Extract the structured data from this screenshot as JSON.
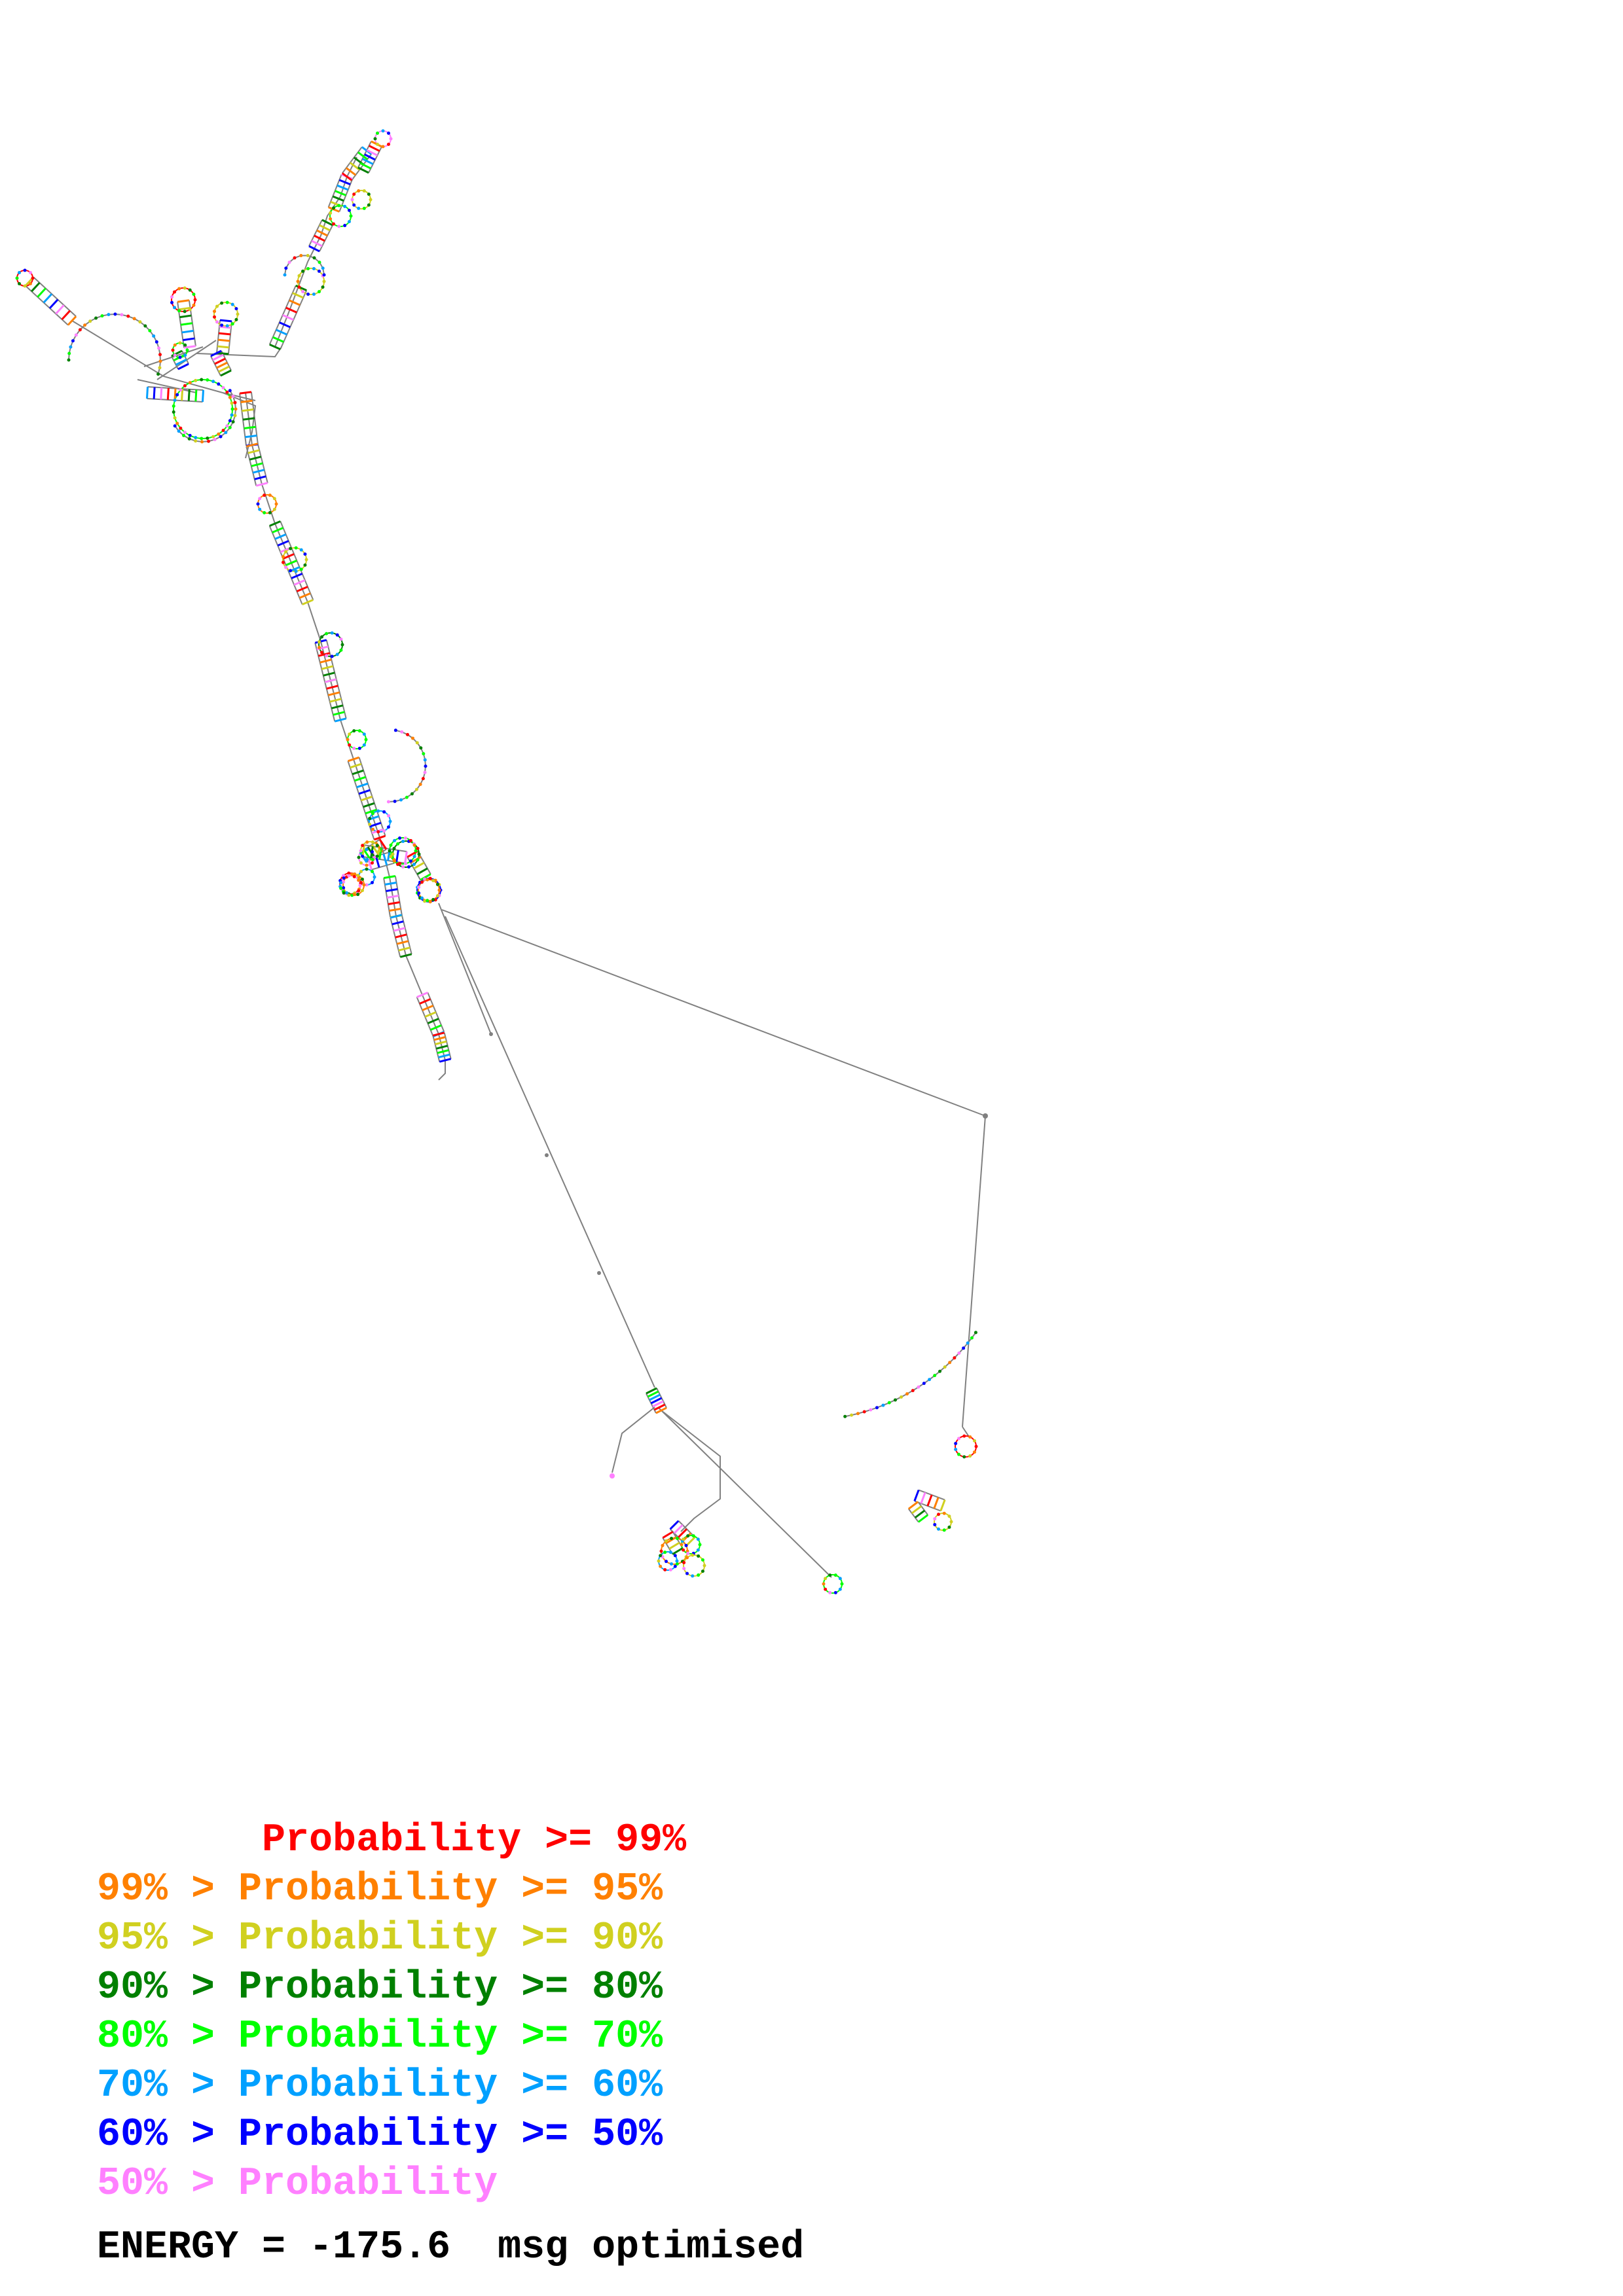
{
  "legend": {
    "rows": [
      {
        "text": "       Probability >= 99%",
        "color": "#ff0000"
      },
      {
        "text": "99% > Probability >= 95%",
        "color": "#ff8000"
      },
      {
        "text": "95% > Probability >= 90%",
        "color": "#d0d020"
      },
      {
        "text": "90% > Probability >= 80%",
        "color": "#008000"
      },
      {
        "text": "80% > Probability >= 70%",
        "color": "#00ff00"
      },
      {
        "text": "70% > Probability >= 60%",
        "color": "#00a0ff"
      },
      {
        "text": "60% > Probability >= 50%",
        "color": "#0000ff"
      },
      {
        "text": "50% > Probability",
        "color": "#ff80ff"
      }
    ]
  },
  "footer": {
    "energy": "ENERGY = -175.6  msg optimised"
  },
  "colors": {
    "backbone": "#808080",
    "p99": "#ff0000",
    "p95": "#ff8000",
    "p90": "#d0d020",
    "p80": "#008000",
    "p70": "#00ff00",
    "p60": "#00a0ff",
    "p50": "#0000ff",
    "plow": "#ff80ff"
  }
}
